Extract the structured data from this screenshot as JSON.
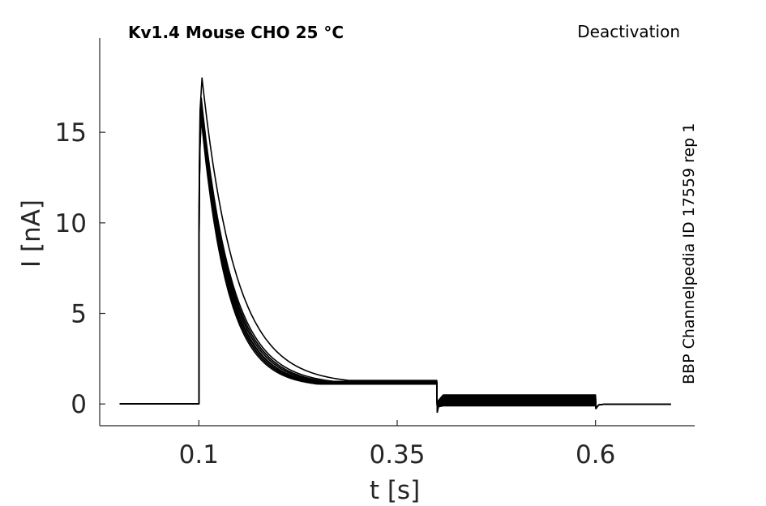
{
  "chart_data": {
    "type": "line",
    "title": "Kv1.4  Mouse  CHO  25 °C",
    "protocol_label": "Deactivation",
    "side_label": "BBP Channelpedia ID 17559 rep 1",
    "xlabel": "t [s]",
    "ylabel": "I [nA]",
    "xlim": [
      -0.025,
      0.725
    ],
    "ylim": [
      -1.2,
      20.2
    ],
    "xticks": [
      0.1,
      0.35,
      0.6
    ],
    "xtick_labels": [
      "0.1",
      "0.35",
      "0.6"
    ],
    "yticks": [
      0,
      5,
      10,
      15
    ],
    "ytick_labels": [
      "0",
      "5",
      "10",
      "15"
    ],
    "grid": false,
    "legend": "none",
    "stimulus_times": {
      "t_start": 0.0,
      "t_on": 0.1,
      "t_step": 0.4,
      "t_off": 0.6,
      "t_end": 0.695
    },
    "series": [
      {
        "peak": 18.0,
        "peak_time": 0.104,
        "tau": 0.042,
        "plateau_start": 1.3,
        "tail_level": 0.5
      },
      {
        "peak": 16.9,
        "peak_time": 0.103,
        "tau": 0.038,
        "plateau_start": 1.25,
        "tail_level": 0.45
      },
      {
        "peak": 16.8,
        "peak_time": 0.103,
        "tau": 0.037,
        "plateau_start": 1.2,
        "tail_level": 0.4
      },
      {
        "peak": 16.7,
        "peak_time": 0.103,
        "tau": 0.037,
        "plateau_start": 1.2,
        "tail_level": 0.35
      },
      {
        "peak": 16.6,
        "peak_time": 0.103,
        "tau": 0.036,
        "plateau_start": 1.18,
        "tail_level": 0.3
      },
      {
        "peak": 16.5,
        "peak_time": 0.103,
        "tau": 0.036,
        "plateau_start": 1.18,
        "tail_level": 0.25
      },
      {
        "peak": 16.4,
        "peak_time": 0.103,
        "tau": 0.035,
        "plateau_start": 1.15,
        "tail_level": 0.2
      },
      {
        "peak": 16.3,
        "peak_time": 0.103,
        "tau": 0.035,
        "plateau_start": 1.15,
        "tail_level": 0.15
      },
      {
        "peak": 16.2,
        "peak_time": 0.103,
        "tau": 0.035,
        "plateau_start": 1.12,
        "tail_level": 0.1
      },
      {
        "peak": 16.1,
        "peak_time": 0.103,
        "tau": 0.034,
        "plateau_start": 1.12,
        "tail_level": 0.05
      },
      {
        "peak": 16.0,
        "peak_time": 0.103,
        "tau": 0.034,
        "plateau_start": 1.1,
        "tail_level": 0.0
      },
      {
        "peak": 15.9,
        "peak_time": 0.103,
        "tau": 0.034,
        "plateau_start": 1.1,
        "tail_level": -0.05
      },
      {
        "peak": 15.8,
        "peak_time": 0.103,
        "tau": 0.033,
        "plateau_start": 1.1,
        "tail_level": -0.1
      }
    ]
  }
}
